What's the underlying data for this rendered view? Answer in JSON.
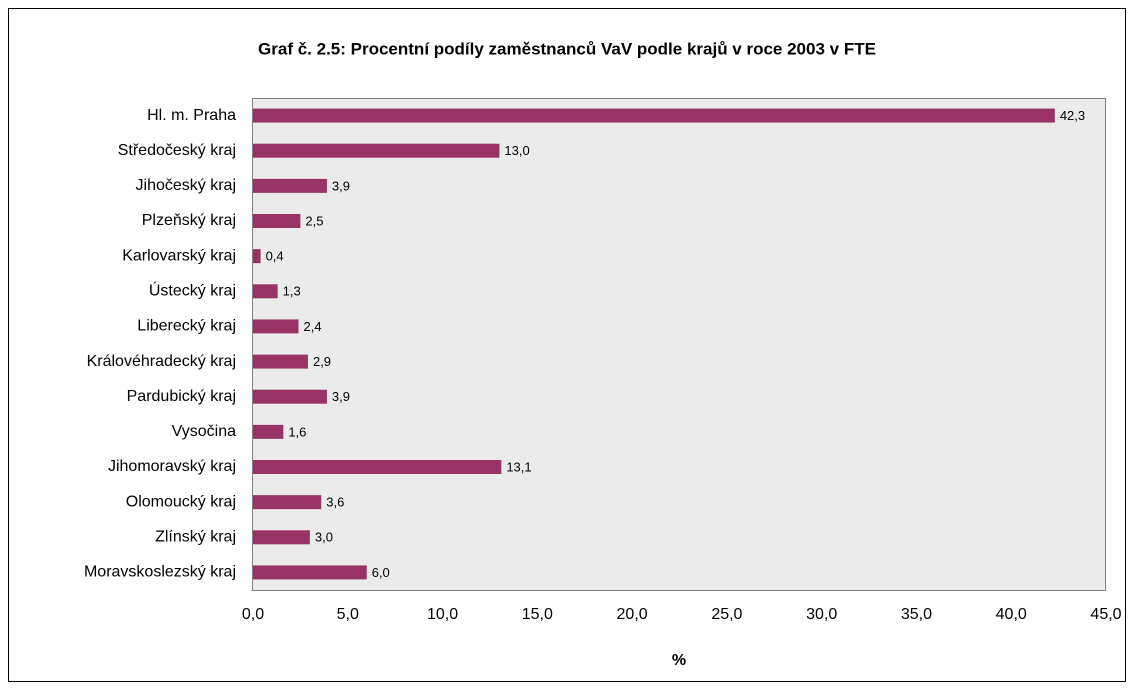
{
  "chart_data": {
    "type": "bar",
    "orientation": "horizontal",
    "title": "Graf č. 2.5: Procentní podíly zaměstnanců VaV podle krajů v roce 2003 v FTE",
    "xlabel": "%",
    "categories": [
      "Hl. m. Praha",
      "Středočeský kraj",
      "Jihočeský kraj",
      "Plzeňský kraj",
      "Karlovarský kraj",
      "Ústecký kraj",
      "Liberecký kraj",
      "Královéhradecký kraj",
      "Pardubický kraj",
      "Vysočina",
      "Jihomoravský kraj",
      "Olomoucký kraj",
      "Zlínský kraj",
      "Moravskoslezský kraj"
    ],
    "values": [
      42.3,
      13.0,
      3.9,
      2.5,
      0.4,
      1.3,
      2.4,
      2.9,
      3.9,
      1.6,
      13.1,
      3.6,
      3.0,
      6.0
    ],
    "value_labels": [
      "42,3",
      "13,0",
      "3,9",
      "2,5",
      "0,4",
      "1,3",
      "2,4",
      "2,9",
      "3,9",
      "1,6",
      "13,1",
      "3,6",
      "3,0",
      "6,0"
    ],
    "color": "#993366",
    "xlim": [
      0,
      45
    ],
    "xticks": [
      {
        "value": 0,
        "label": "0,0"
      },
      {
        "value": 5,
        "label": "5,0"
      },
      {
        "value": 10,
        "label": "10,0"
      },
      {
        "value": 15,
        "label": "15,0"
      },
      {
        "value": 20,
        "label": "20,0"
      },
      {
        "value": 25,
        "label": "25,0"
      },
      {
        "value": 30,
        "label": "30,0"
      },
      {
        "value": 35,
        "label": "35,0"
      },
      {
        "value": 40,
        "label": "40,0"
      },
      {
        "value": 45,
        "label": "45,0"
      }
    ],
    "grid": false
  }
}
